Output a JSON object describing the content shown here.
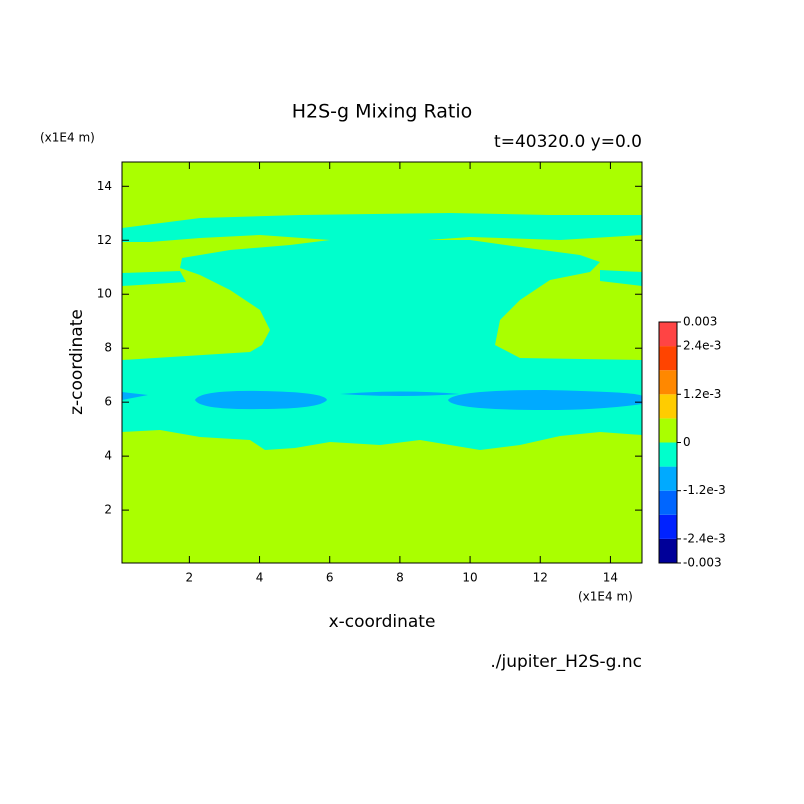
{
  "chart_data": {
    "type": "contour",
    "title": "H2S-g Mixing Ratio",
    "subtitle": "t=40320.0 y=0.0",
    "x_label": "x-coordinate",
    "y_label": "z-coordinate",
    "x_unit": "(x1E4 m)",
    "y_unit": "(x1E4 m)",
    "source": "./jupiter_H2S-g.nc",
    "xlim": [
      0.08,
      14.9
    ],
    "ylim": [
      0.04,
      14.9
    ],
    "xticks": [
      2,
      4,
      6,
      8,
      10,
      12,
      14
    ],
    "yticks": [
      2,
      4,
      6,
      8,
      10,
      12,
      14
    ],
    "colorbar": {
      "levels": [
        -0.003,
        -0.0024,
        -0.0018,
        -0.0012,
        -0.0006,
        0,
        0.0006,
        0.0012,
        0.0018,
        0.0024,
        0.003
      ],
      "colors": [
        "#000099",
        "#0022ff",
        "#0066ff",
        "#00aaff",
        "#00ffcc",
        "#aaff00",
        "#ffcc00",
        "#ff8800",
        "#ff4400",
        "#ff4444"
      ],
      "ticks": [
        {
          "value": 0.003,
          "label": "0.003"
        },
        {
          "value": 0.0024,
          "label": "2.4e-3"
        },
        {
          "value": 0.0012,
          "label": "1.2e-3"
        },
        0,
        {
          "value": -0.0012,
          "label": "-1.2e-3"
        },
        {
          "value": -0.0024,
          "label": "-2.4e-3"
        },
        {
          "value": -0.003,
          "label": "-0.003"
        }
      ]
    }
  }
}
